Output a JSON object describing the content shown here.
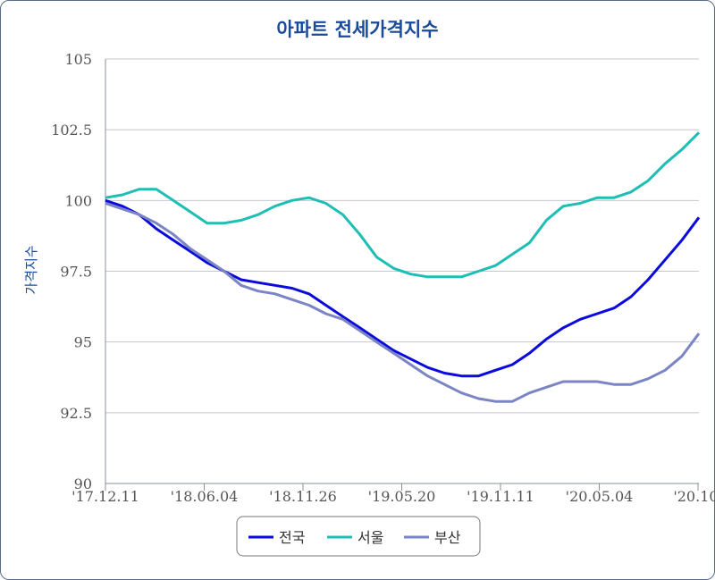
{
  "chart_data": {
    "type": "line",
    "title": "아파트 전세가격지수",
    "ylabel": "가격지수",
    "ylim": [
      90,
      105
    ],
    "yticks": [
      "90",
      "92.5",
      "95",
      "97.5",
      "100",
      "102.5",
      "105"
    ],
    "xtick_labels": [
      "'17.12.11",
      "'18.06.04",
      "'18.11.26",
      "'19.05.20",
      "'19.11.11",
      "'20.05.04",
      "'20.10."
    ],
    "grid": true,
    "legend": "bottom",
    "series": [
      {
        "name": "전국",
        "color": "#0a0adc",
        "values": [
          100.0,
          99.8,
          99.5,
          99.0,
          98.6,
          98.2,
          97.8,
          97.5,
          97.2,
          97.1,
          97.0,
          96.9,
          96.7,
          96.3,
          95.9,
          95.5,
          95.1,
          94.7,
          94.4,
          94.1,
          93.9,
          93.8,
          93.8,
          94.0,
          94.2,
          94.6,
          95.1,
          95.5,
          95.8,
          96.0,
          96.2,
          96.6,
          97.2,
          97.9,
          98.6,
          99.4
        ]
      },
      {
        "name": "서울",
        "color": "#1ebeb4",
        "values": [
          100.1,
          100.2,
          100.4,
          100.4,
          100.0,
          99.6,
          99.2,
          99.2,
          99.3,
          99.5,
          99.8,
          100.0,
          100.1,
          99.9,
          99.5,
          98.8,
          98.0,
          97.6,
          97.4,
          97.3,
          97.3,
          97.3,
          97.5,
          97.7,
          98.1,
          98.5,
          99.3,
          99.8,
          99.9,
          100.1,
          100.1,
          100.3,
          100.7,
          101.3,
          101.8,
          102.4
        ]
      },
      {
        "name": "부산",
        "color": "#7b84c4",
        "values": [
          99.9,
          99.7,
          99.5,
          99.2,
          98.8,
          98.3,
          97.9,
          97.5,
          97.0,
          96.8,
          96.7,
          96.5,
          96.3,
          96.0,
          95.8,
          95.4,
          95.0,
          94.6,
          94.2,
          93.8,
          93.5,
          93.2,
          93.0,
          92.9,
          92.9,
          93.2,
          93.4,
          93.6,
          93.6,
          93.6,
          93.5,
          93.5,
          93.7,
          94.0,
          94.5,
          95.3
        ]
      }
    ]
  }
}
